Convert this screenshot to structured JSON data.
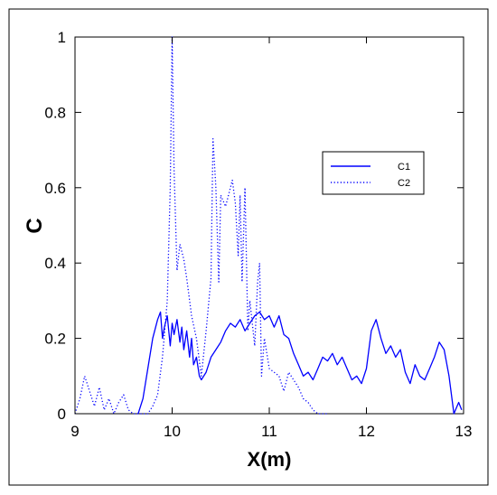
{
  "chart_data": {
    "type": "line",
    "title": "",
    "xlabel": "X(m)",
    "ylabel": "C",
    "xlim": [
      9,
      13
    ],
    "ylim": [
      0,
      1
    ],
    "xticks": [
      "9",
      "10",
      "11",
      "12",
      "13"
    ],
    "yticks": [
      "0",
      "0.2",
      "0.4",
      "0.6",
      "0.8",
      "1"
    ],
    "grid": false,
    "legend_position": "right",
    "series": [
      {
        "name": "C1",
        "style": "solid",
        "color": "#0000ff",
        "x": [
          9.65,
          9.7,
          9.75,
          9.8,
          9.85,
          9.88,
          9.9,
          9.92,
          9.95,
          9.98,
          10.0,
          10.02,
          10.05,
          10.08,
          10.1,
          10.12,
          10.15,
          10.18,
          10.2,
          10.22,
          10.25,
          10.28,
          10.3,
          10.35,
          10.4,
          10.45,
          10.5,
          10.55,
          10.6,
          10.65,
          10.7,
          10.75,
          10.8,
          10.85,
          10.9,
          10.95,
          11.0,
          11.05,
          11.1,
          11.15,
          11.2,
          11.25,
          11.3,
          11.35,
          11.4,
          11.45,
          11.5,
          11.55,
          11.6,
          11.65,
          11.7,
          11.75,
          11.8,
          11.85,
          11.9,
          11.95,
          12.0,
          12.05,
          12.1,
          12.15,
          12.2,
          12.25,
          12.3,
          12.35,
          12.4,
          12.45,
          12.5,
          12.55,
          12.6,
          12.65,
          12.7,
          12.75,
          12.8,
          12.85,
          12.9,
          12.95,
          12.98
        ],
        "y": [
          0.0,
          0.04,
          0.12,
          0.2,
          0.25,
          0.27,
          0.2,
          0.23,
          0.26,
          0.18,
          0.24,
          0.21,
          0.25,
          0.19,
          0.23,
          0.17,
          0.22,
          0.15,
          0.2,
          0.13,
          0.15,
          0.1,
          0.09,
          0.11,
          0.15,
          0.17,
          0.19,
          0.22,
          0.24,
          0.23,
          0.25,
          0.22,
          0.24,
          0.26,
          0.27,
          0.25,
          0.26,
          0.23,
          0.26,
          0.21,
          0.2,
          0.16,
          0.13,
          0.1,
          0.11,
          0.09,
          0.12,
          0.15,
          0.14,
          0.16,
          0.13,
          0.15,
          0.12,
          0.09,
          0.1,
          0.08,
          0.12,
          0.22,
          0.25,
          0.2,
          0.16,
          0.18,
          0.15,
          0.17,
          0.11,
          0.08,
          0.13,
          0.1,
          0.09,
          0.12,
          0.15,
          0.19,
          0.17,
          0.1,
          0.0,
          0.03,
          0.01
        ]
      },
      {
        "name": "C2",
        "style": "dotted",
        "color": "#0000ff",
        "x": [
          9.0,
          9.05,
          9.1,
          9.15,
          9.2,
          9.25,
          9.3,
          9.35,
          9.4,
          9.45,
          9.5,
          9.55,
          9.6,
          9.65,
          9.7,
          9.75,
          9.8,
          9.85,
          9.9,
          9.95,
          9.98,
          10.0,
          10.02,
          10.05,
          10.08,
          10.1,
          10.12,
          10.15,
          10.2,
          10.25,
          10.3,
          10.35,
          10.4,
          10.42,
          10.45,
          10.48,
          10.5,
          10.55,
          10.6,
          10.62,
          10.65,
          10.68,
          10.7,
          10.72,
          10.75,
          10.78,
          10.8,
          10.85,
          10.88,
          10.9,
          10.92,
          10.95,
          11.0,
          11.05,
          11.1,
          11.15,
          11.2,
          11.25,
          11.3,
          11.35,
          11.4,
          11.45,
          11.5,
          11.55,
          11.6
        ],
        "y": [
          0.0,
          0.04,
          0.1,
          0.06,
          0.02,
          0.07,
          0.01,
          0.04,
          0.0,
          0.03,
          0.05,
          0.01,
          0.0,
          0.0,
          0.0,
          0.0,
          0.02,
          0.05,
          0.15,
          0.3,
          0.6,
          1.0,
          0.65,
          0.38,
          0.45,
          0.43,
          0.41,
          0.36,
          0.26,
          0.2,
          0.1,
          0.22,
          0.36,
          0.73,
          0.6,
          0.35,
          0.58,
          0.55,
          0.6,
          0.62,
          0.56,
          0.42,
          0.58,
          0.35,
          0.6,
          0.22,
          0.3,
          0.18,
          0.35,
          0.4,
          0.1,
          0.2,
          0.12,
          0.11,
          0.1,
          0.06,
          0.11,
          0.09,
          0.07,
          0.04,
          0.03,
          0.01,
          0.0,
          0.0,
          0.0
        ]
      }
    ]
  }
}
